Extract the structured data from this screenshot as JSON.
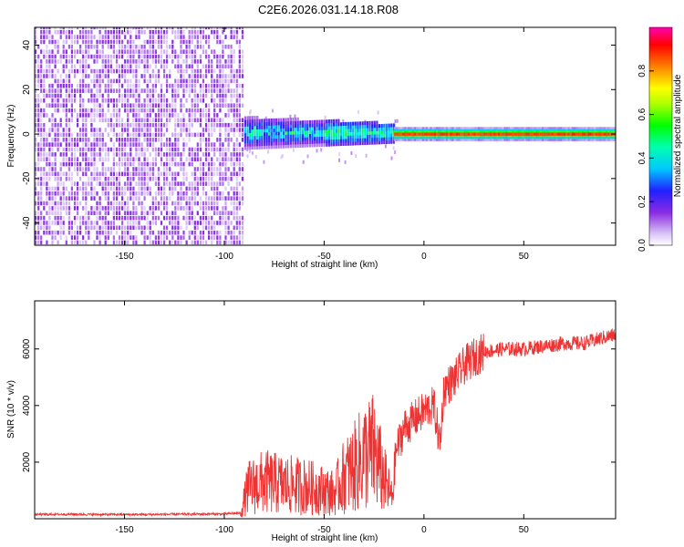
{
  "title": "C2E6.2026.031.14.18.R08",
  "chart_data": [
    {
      "type": "heatmap",
      "xlabel": "Height of straight line (km)",
      "ylabel": "Frequency (Hz)",
      "xlim": [
        -195,
        96
      ],
      "ylim": [
        -50,
        48
      ],
      "xticks": [
        -150,
        -100,
        -50,
        0,
        50
      ],
      "yticks": [
        -40,
        -20,
        0,
        20,
        40
      ],
      "colorbar": {
        "label": "Normalized spectral amplitude",
        "range": [
          0,
          1
        ],
        "ticks": [
          "0.0",
          "0.2",
          "0.4",
          "0.6",
          "0.8"
        ]
      },
      "regions": [
        {
          "x_range": [
            -195,
            -90
          ],
          "description": "broadband noise",
          "amplitude": 0.1
        },
        {
          "x_range": [
            -90,
            -15
          ],
          "center_hz": 0,
          "halfwidth_hz": 7,
          "amplitude": 0.3
        },
        {
          "x_range": [
            -15,
            96
          ],
          "center_hz": 0,
          "halfwidth_hz": 2,
          "amplitude": 0.85
        }
      ]
    },
    {
      "type": "line",
      "xlabel": "Height of straight line (km)",
      "ylabel": "SNR (10 * v/v)",
      "xlim": [
        -195,
        96
      ],
      "ylim": [
        0,
        7700
      ],
      "xticks": [
        -150,
        -100,
        -50,
        0,
        50
      ],
      "yticks": [
        2000,
        4000,
        6000
      ],
      "color": "#ee3333",
      "series": [
        {
          "name": "SNR",
          "x": [
            -195,
            -180,
            -160,
            -140,
            -120,
            -100,
            -92,
            -88,
            -80,
            -70,
            -60,
            -50,
            -45,
            -40,
            -35,
            -30,
            -25,
            -20,
            -16,
            -14,
            -10,
            -5,
            0,
            5,
            8,
            10,
            15,
            20,
            25,
            30,
            40,
            50,
            60,
            70,
            80,
            90,
            96
          ],
          "y": [
            150,
            160,
            150,
            150,
            160,
            170,
            200,
            1100,
            1300,
            1200,
            1150,
            1000,
            900,
            1500,
            1800,
            2200,
            2400,
            1400,
            700,
            2400,
            3200,
            3500,
            3800,
            4000,
            2600,
            4600,
            4900,
            5400,
            5700,
            5900,
            6000,
            6000,
            6100,
            6200,
            6200,
            6400,
            6500
          ]
        }
      ]
    }
  ]
}
